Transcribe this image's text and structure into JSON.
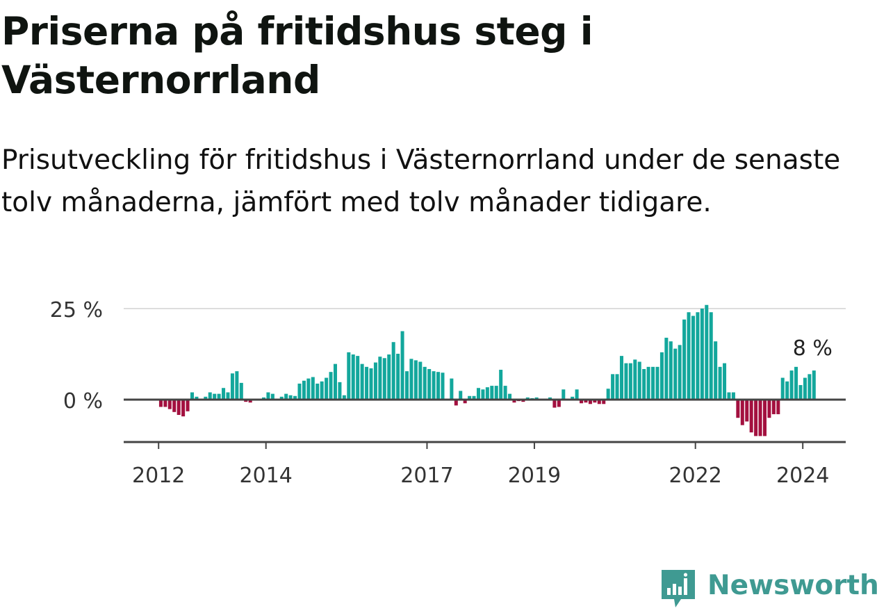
{
  "title": "Priserna på fritidshus steg i Västernorrland",
  "subtitle": "Prisutveckling för fritidshus i Västernorrland under de senaste tolv månaderna, jämfört med tolv månader tidigare.",
  "logo_text": "Newsworthy",
  "colors": {
    "positive": "#13a79c",
    "negative": "#a3103f",
    "zero_line": "#444444",
    "grid": "#dddddd",
    "logo": "#3f9a92"
  },
  "chart_data": {
    "type": "bar",
    "unit": "%",
    "y_ticks": [
      {
        "value": 0,
        "label": "0 %"
      },
      {
        "value": 25,
        "label": "25 %"
      }
    ],
    "ylim": [
      -12,
      25
    ],
    "x_ticks": [
      {
        "x": 2012,
        "label": "2012"
      },
      {
        "x": 2014,
        "label": "2014"
      },
      {
        "x": 2017,
        "label": "2017"
      },
      {
        "x": 2019,
        "label": "2019"
      },
      {
        "x": 2022,
        "label": "2022"
      },
      {
        "x": 2024,
        "label": "2024"
      }
    ],
    "xlim": [
      2011.35,
      2024.8
    ],
    "start_year": 2012,
    "values": [
      -2,
      -2,
      -2.6,
      -3.4,
      -4.2,
      -4.6,
      -3.2,
      2,
      0.8,
      0.2,
      0.8,
      2,
      1.6,
      1.6,
      3.2,
      2,
      7.2,
      7.8,
      4.6,
      -0.6,
      -0.8,
      0,
      0.2,
      0.6,
      2,
      1.6,
      0.2,
      0.8,
      1.6,
      1.2,
      1,
      4.4,
      5.2,
      5.8,
      6.2,
      4.4,
      5,
      6,
      7.6,
      9.8,
      4.8,
      1.2,
      13,
      12.4,
      12,
      9.8,
      9,
      8.6,
      10.2,
      11.8,
      11.4,
      12.4,
      15.8,
      12.6,
      18.8,
      7.8,
      11.2,
      10.8,
      10.4,
      9,
      8.4,
      7.8,
      7.6,
      7.4,
      0,
      5.8,
      -1.6,
      2.4,
      -1,
      1,
      1,
      3.2,
      2.8,
      3.4,
      3.8,
      3.8,
      8.2,
      3.8,
      1.6,
      -0.8,
      -0.4,
      -0.6,
      0.6,
      0.4,
      0.6,
      0.2,
      -0.2,
      0.6,
      -2.2,
      -2,
      2.8,
      -0.2,
      0.8,
      2.8,
      -1,
      -0.8,
      -1.2,
      -0.8,
      -1.2,
      -1.2,
      3,
      7,
      7,
      12,
      10,
      10,
      11,
      10.4,
      8.4,
      9,
      9,
      9,
      13,
      17,
      16,
      14,
      15,
      22,
      24,
      23,
      24,
      25,
      26,
      24,
      16,
      9,
      10,
      2,
      2,
      -5,
      -7,
      -6,
      -9,
      -10,
      -10,
      -10,
      -5,
      -4,
      -4,
      6,
      5,
      8,
      9,
      4,
      6,
      7,
      8
    ],
    "last_value_label": "8 %"
  }
}
